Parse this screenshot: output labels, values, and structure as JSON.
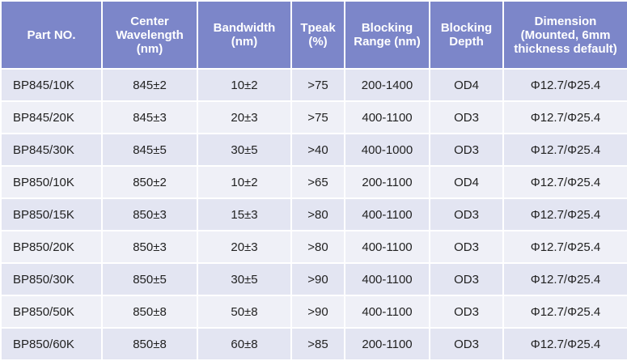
{
  "table": {
    "header": [
      "Part NO.",
      "Center Wavelength (nm)",
      "Bandwidth (nm)",
      "Tpeak (%)",
      "Blocking Range (nm)",
      "Blocking Depth",
      "Dimension (Mounted, 6mm thickness default)"
    ],
    "rows": [
      [
        "BP845/10K",
        "845±2",
        "10±2",
        ">75",
        "200-1400",
        "OD4",
        "Φ12.7/Φ25.4"
      ],
      [
        "BP845/20K",
        "845±3",
        "20±3",
        ">75",
        "400-1100",
        "OD3",
        "Φ12.7/Φ25.4"
      ],
      [
        "BP845/30K",
        "845±5",
        "30±5",
        ">40",
        "400-1000",
        "OD3",
        "Φ12.7/Φ25.4"
      ],
      [
        "BP850/10K",
        "850±2",
        "10±2",
        ">65",
        "200-1100",
        "OD4",
        "Φ12.7/Φ25.4"
      ],
      [
        "BP850/15K",
        "850±3",
        "15±3",
        ">80",
        "400-1100",
        "OD3",
        "Φ12.7/Φ25.4"
      ],
      [
        "BP850/20K",
        "850±3",
        "20±3",
        ">80",
        "400-1100",
        "OD3",
        "Φ12.7/Φ25.4"
      ],
      [
        "BP850/30K",
        "850±5",
        "30±5",
        ">90",
        "400-1100",
        "OD3",
        "Φ12.7/Φ25.4"
      ],
      [
        "BP850/50K",
        "850±8",
        "50±8",
        ">90",
        "400-1100",
        "OD3",
        "Φ12.7/Φ25.4"
      ],
      [
        "BP850/60K",
        "850±8",
        "60±8",
        ">85",
        "200-1100",
        "OD3",
        "Φ12.7/Φ25.4"
      ]
    ]
  }
}
